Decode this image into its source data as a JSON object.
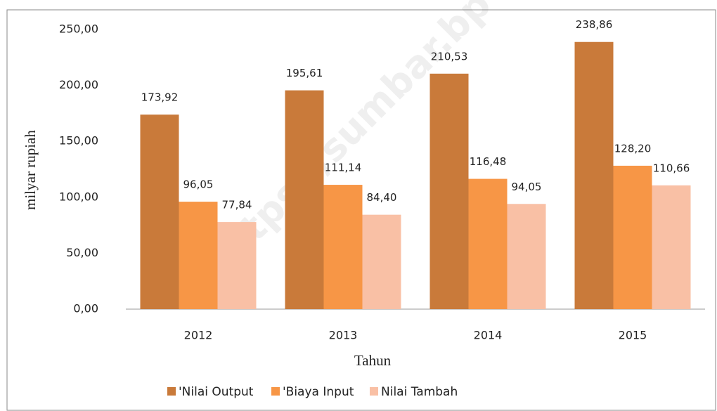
{
  "chart_data": {
    "type": "bar",
    "y_label": "milyar rupiah",
    "x_label": "Tahun",
    "watermark": "https://sumbar.bp",
    "categories": [
      "2012",
      "2013",
      "2014",
      "2015"
    ],
    "series": [
      {
        "name": "'Nilai Output",
        "color": "#c97a3a",
        "values": [
          173.92,
          195.61,
          210.53,
          238.86
        ],
        "value_labels": [
          "173,92",
          "195,61",
          "210,53",
          "238,86"
        ]
      },
      {
        "name": "'Biaya Input",
        "color": "#f79646",
        "values": [
          96.05,
          111.14,
          116.48,
          128.2
        ],
        "value_labels": [
          "96,05",
          "111,14",
          "116,48",
          "128,20"
        ]
      },
      {
        "name": "Nilai Tambah",
        "color": "#f9c0a5",
        "values": [
          77.84,
          84.4,
          94.05,
          110.66
        ],
        "value_labels": [
          "77,84",
          "84,40",
          "94,05",
          "110,66"
        ]
      }
    ],
    "ylim": [
      0,
      250
    ],
    "yticks": [
      {
        "value": 0,
        "label": "0,00"
      },
      {
        "value": 50,
        "label": "50,00"
      },
      {
        "value": 100,
        "label": "100,00"
      },
      {
        "value": 150,
        "label": "150,00"
      },
      {
        "value": 200,
        "label": "200,00"
      },
      {
        "value": 250,
        "label": "250,00"
      }
    ],
    "legend": "bottom"
  }
}
